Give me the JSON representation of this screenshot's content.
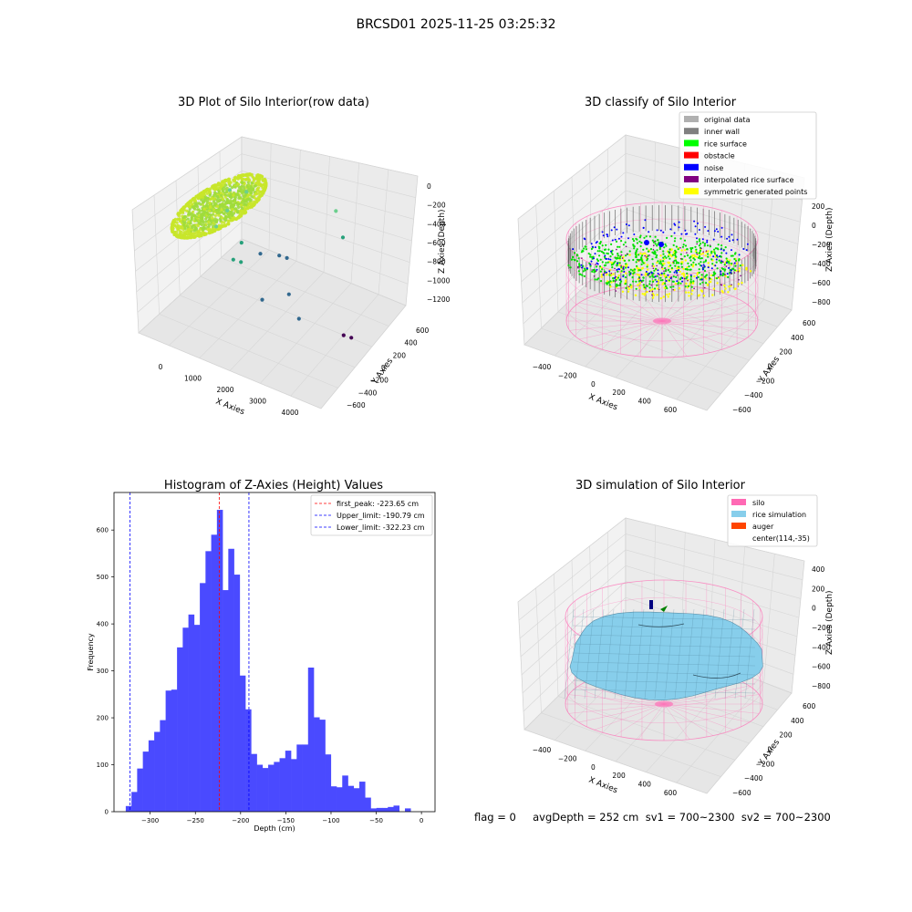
{
  "figure": {
    "suptitle": "BRCSD01 2025-11-25 03:25:32",
    "status_text": "flag = 0     avgDepth = 252 cm  sv1 = 700~2300  sv2 = 700~2300"
  },
  "colors": {
    "point_yellow": "#c8e62a",
    "point_green": "#9fdc3c",
    "hist_bar": "#4a4aff",
    "first_peak_line": "#ff0000",
    "limit_line": "#0000ff",
    "silo": "#ff69b4",
    "rice_simulation": "#87ceeb",
    "auger": "#ff4500"
  },
  "chart_data": [
    {
      "type": "scatter",
      "projection": "3d",
      "title": "3D Plot of Silo Interior(row data)",
      "xlabel": "X Axies",
      "ylabel": "Y Axies",
      "zlabel": "Z Axies (Depth)",
      "x_ticks": [
        "0",
        "1000",
        "2000",
        "3000",
        "4000"
      ],
      "y_ticks": [
        "−600",
        "−400",
        "−200",
        "0",
        "200",
        "400",
        "600"
      ],
      "z_ticks": [
        "0",
        "−200",
        "−400",
        "−600",
        "−800",
        "−1000",
        "−1200"
      ],
      "xlim": [
        -500,
        4500
      ],
      "ylim": [
        -600,
        700
      ],
      "zlim": [
        -1300,
        50
      ],
      "outlier_points": [
        {
          "x": 150,
          "y": 250,
          "z": -300
        },
        {
          "x": 300,
          "y": 150,
          "z": -420
        },
        {
          "x": 500,
          "y": 300,
          "z": -300
        },
        {
          "x": 650,
          "y": -150,
          "z": -300
        },
        {
          "x": 800,
          "y": 100,
          "z": -650
        },
        {
          "x": 900,
          "y": -50,
          "z": -700
        },
        {
          "x": 1000,
          "y": 0,
          "z": -750
        },
        {
          "x": 1100,
          "y": 200,
          "z": -800
        },
        {
          "x": 1400,
          "y": 300,
          "z": -850
        },
        {
          "x": 1500,
          "y": 350,
          "z": -900
        },
        {
          "x": 1800,
          "y": -100,
          "z": -950
        },
        {
          "x": 2100,
          "y": 100,
          "z": -1000
        },
        {
          "x": 2700,
          "y": -50,
          "z": -1050
        },
        {
          "x": 3600,
          "y": 100,
          "z": -1200
        },
        {
          "x": 3700,
          "y": 150,
          "z": -1250
        },
        {
          "x": 2300,
          "y": 600,
          "z": -450
        },
        {
          "x": 2600,
          "y": 550,
          "z": -650
        }
      ]
    },
    {
      "type": "scatter",
      "projection": "3d",
      "title": "3D classify of Silo Interior",
      "xlabel": "X Axies",
      "ylabel": "Y Axies",
      "zlabel": "Z Axies (Depth)",
      "x_ticks": [
        "−400",
        "−200",
        "0",
        "200",
        "400",
        "600"
      ],
      "y_ticks": [
        "−600",
        "−400",
        "−200",
        "0",
        "200",
        "400",
        "600"
      ],
      "z_ticks": [
        "200",
        "0",
        "−200",
        "−400",
        "−600",
        "−800"
      ],
      "legend": [
        {
          "label": "original data",
          "color": "#b0b0b0"
        },
        {
          "label": "inner wall",
          "color": "#808080"
        },
        {
          "label": "rice surface",
          "color": "#00ff00"
        },
        {
          "label": "obstacle",
          "color": "#ff0000"
        },
        {
          "label": "noise",
          "color": "#0000ff"
        },
        {
          "label": "interpolated rice surface",
          "color": "#800080"
        },
        {
          "label": "symmetric generated points",
          "color": "#ffff00"
        }
      ],
      "legend_loc": "upper right"
    },
    {
      "type": "bar",
      "subtype": "histogram",
      "title": "Histogram of Z-Axies (Height) Values",
      "xlabel": "Depth (cm)",
      "ylabel": "Frequency",
      "xlim": [
        -340,
        15
      ],
      "ylim": [
        0,
        680
      ],
      "x_ticks": [
        -300,
        -250,
        -200,
        -150,
        -100,
        -50,
        0
      ],
      "y_ticks": [
        0,
        100,
        200,
        300,
        400,
        500,
        600
      ],
      "bin_start": -327,
      "bin_width": 6.3,
      "values": [
        12,
        42,
        92,
        128,
        152,
        170,
        195,
        258,
        260,
        350,
        392,
        420,
        398,
        487,
        555,
        590,
        643,
        472,
        560,
        505,
        290,
        218,
        123,
        100,
        93,
        100,
        106,
        114,
        130,
        112,
        143,
        143,
        307,
        201,
        196,
        122,
        54,
        52,
        77,
        55,
        50,
        64,
        30,
        7,
        8,
        8,
        10,
        13,
        0,
        7
      ],
      "vlines": [
        {
          "label": "first_peak: -223.65 cm",
          "x": -223.65,
          "color": "#ff0000"
        },
        {
          "label": "Upper_limit: -190.79 cm",
          "x": -190.79,
          "color": "#0000ff"
        },
        {
          "label": "Lower_limit: -322.23 cm",
          "x": -322.23,
          "color": "#0000ff"
        }
      ],
      "legend_loc": "upper right"
    },
    {
      "type": "scatter",
      "projection": "3d",
      "title": "3D simulation of Silo Interior",
      "xlabel": "X Axies",
      "ylabel": "Y Axies",
      "zlabel": "Z Axies (Depth)",
      "x_ticks": [
        "−400",
        "−200",
        "0",
        "200",
        "400",
        "600"
      ],
      "y_ticks": [
        "−600",
        "−400",
        "−200",
        "0",
        "200",
        "400",
        "600"
      ],
      "z_ticks": [
        "400",
        "200",
        "0",
        "−200",
        "−400",
        "−600",
        "−800"
      ],
      "legend": [
        {
          "label": "silo",
          "color": "#ff69b4"
        },
        {
          "label": "rice simulation",
          "color": "#87ceeb"
        },
        {
          "label": "auger",
          "color": "#ff4500"
        },
        {
          "label": "center(114,-35)",
          "color": ""
        }
      ],
      "legend_loc": "upper right"
    }
  ]
}
